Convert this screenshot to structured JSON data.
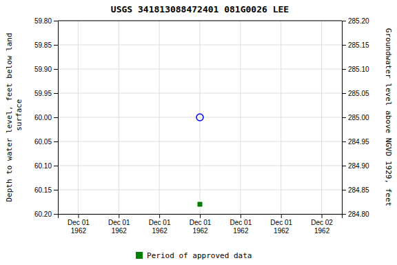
{
  "chart_data": {
    "type": "scatter",
    "title": "USGS 341813088472401 081G0026  LEE",
    "y_label": "Depth to water level, feet below land\n surface",
    "y2_label": "Groundwater level above NGVD 1929, feet",
    "categories": [
      "Dec 01\n1962",
      "Dec 01\n1962",
      "Dec 01\n1962",
      "Dec 01\n1962",
      "Dec 01\n1962",
      "Dec 01\n1962",
      "Dec 02\n1962"
    ],
    "series": [
      {
        "color": "blue",
        "marker": "circle-open",
        "values": [
          null,
          null,
          null,
          60.0,
          null,
          null,
          null
        ]
      },
      {
        "name": "Period of approved data",
        "color": "green",
        "marker": "square",
        "values": [
          null,
          null,
          null,
          60.18,
          null,
          null,
          null
        ]
      }
    ],
    "ylim": [
      60.2,
      59.8
    ],
    "yticks": [
      {
        "value": 59.8,
        "label": "59.80"
      },
      {
        "value": 59.85,
        "label": "59.85"
      },
      {
        "value": 59.9,
        "label": "59.90"
      },
      {
        "value": 59.95,
        "label": "59.95"
      },
      {
        "value": 60.0,
        "label": "60.00"
      },
      {
        "value": 60.05,
        "label": "60.05"
      },
      {
        "value": 60.1,
        "label": "60.10"
      },
      {
        "value": 60.15,
        "label": "60.15"
      },
      {
        "value": 60.2,
        "label": "60.20"
      }
    ],
    "y2lim": [
      284.8,
      285.2
    ],
    "y2ticks": [
      {
        "value": 285.2,
        "label": "285.20"
      },
      {
        "value": 285.15,
        "label": "285.15"
      },
      {
        "value": 285.1,
        "label": "285.10"
      },
      {
        "value": 285.05,
        "label": "285.05"
      },
      {
        "value": 285.0,
        "label": "285.00"
      },
      {
        "value": 284.95,
        "label": "284.95"
      },
      {
        "value": 284.9,
        "label": "284.90"
      },
      {
        "value": 284.85,
        "label": "284.85"
      },
      {
        "value": 284.8,
        "label": "284.80"
      }
    ],
    "grid": true,
    "legend": "bottom"
  }
}
